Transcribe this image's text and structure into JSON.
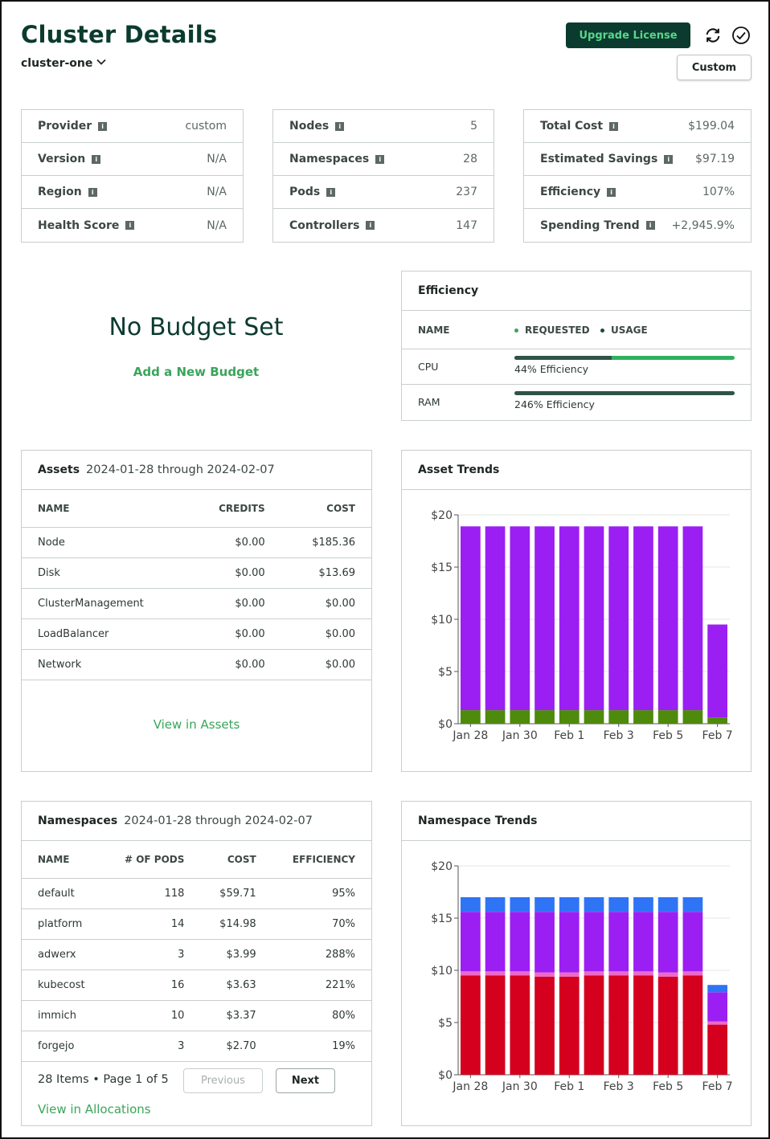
{
  "header": {
    "title": "Cluster Details",
    "cluster_name": "cluster-one",
    "upgrade_label": "Upgrade License",
    "custom_label": "Custom",
    "refresh_icon": "refresh-icon",
    "check_icon": "check-circle-icon"
  },
  "cluster_info": [
    {
      "label": "Provider",
      "value": "custom"
    },
    {
      "label": "Version",
      "value": "N/A"
    },
    {
      "label": "Region",
      "value": "N/A"
    },
    {
      "label": "Health Score",
      "value": "N/A"
    }
  ],
  "resources": [
    {
      "label": "Nodes",
      "value": "5"
    },
    {
      "label": "Namespaces",
      "value": "28"
    },
    {
      "label": "Pods",
      "value": "237"
    },
    {
      "label": "Controllers",
      "value": "147"
    }
  ],
  "costs": [
    {
      "label": "Total Cost",
      "value": "$199.04"
    },
    {
      "label": "Estimated Savings",
      "value": "$97.19"
    },
    {
      "label": "Efficiency",
      "value": "107%"
    },
    {
      "label": "Spending Trend",
      "value": "+2,945.9%"
    }
  ],
  "budget": {
    "title": "No Budget Set",
    "link": "Add a New Budget"
  },
  "efficiency": {
    "title": "Efficiency",
    "col_name": "NAME",
    "legend_requested": "REQUESTED",
    "legend_usage": "USAGE",
    "rows": [
      {
        "name": "CPU",
        "label": "44% Efficiency",
        "usage_fraction": 0.44
      },
      {
        "name": "RAM",
        "label": "246% Efficiency",
        "usage_fraction": 1.0
      }
    ]
  },
  "assets": {
    "title": "Assets",
    "range": "2024-01-28 through 2024-02-07",
    "columns": [
      "NAME",
      "CREDITS",
      "COST"
    ],
    "rows": [
      [
        "Node",
        "$0.00",
        "$185.36"
      ],
      [
        "Disk",
        "$0.00",
        "$13.69"
      ],
      [
        "ClusterManagement",
        "$0.00",
        "$0.00"
      ],
      [
        "LoadBalancer",
        "$0.00",
        "$0.00"
      ],
      [
        "Network",
        "$0.00",
        "$0.00"
      ]
    ],
    "link": "View in Assets"
  },
  "namespaces": {
    "title": "Namespaces",
    "range": "2024-01-28 through 2024-02-07",
    "columns": [
      "NAME",
      "# OF PODS",
      "COST",
      "EFFICIENCY"
    ],
    "rows": [
      [
        "default",
        "118",
        "$59.71",
        "95%"
      ],
      [
        "platform",
        "14",
        "$14.98",
        "70%"
      ],
      [
        "adwerx",
        "3",
        "$3.99",
        "288%"
      ],
      [
        "kubecost",
        "16",
        "$3.63",
        "221%"
      ],
      [
        "immich",
        "10",
        "$3.37",
        "80%"
      ],
      [
        "forgejo",
        "3",
        "$2.70",
        "19%"
      ]
    ],
    "pager_text": "28 Items • Page 1 of 5",
    "prev_label": "Previous",
    "next_label": "Next",
    "link": "View in Allocations"
  },
  "chart_data": [
    {
      "type": "bar",
      "title": "Asset Trends",
      "stacked": true,
      "x": [
        "Jan 28",
        "Jan 29",
        "Jan 30",
        "Jan 31",
        "Feb 1",
        "Feb 2",
        "Feb 3",
        "Feb 4",
        "Feb 5",
        "Feb 6",
        "Feb 7"
      ],
      "x_tick_labels": [
        "Jan 28",
        "Jan 30",
        "Feb 1",
        "Feb 3",
        "Feb 5",
        "Feb 7"
      ],
      "y_tick_labels": [
        "$0",
        "$5",
        "$10",
        "$15",
        "$20"
      ],
      "ylim": [
        0,
        20
      ],
      "grid": true,
      "series": [
        {
          "color": "#4e8a0b",
          "values": [
            1.3,
            1.3,
            1.3,
            1.3,
            1.3,
            1.3,
            1.3,
            1.3,
            1.3,
            1.3,
            0.6
          ]
        },
        {
          "color": "#9b1ff2",
          "values": [
            17.6,
            17.6,
            17.6,
            17.6,
            17.6,
            17.6,
            17.6,
            17.6,
            17.6,
            17.6,
            8.9
          ]
        }
      ]
    },
    {
      "type": "bar",
      "title": "Namespace Trends",
      "stacked": true,
      "x": [
        "Jan 28",
        "Jan 29",
        "Jan 30",
        "Jan 31",
        "Feb 1",
        "Feb 2",
        "Feb 3",
        "Feb 4",
        "Feb 5",
        "Feb 6",
        "Feb 7"
      ],
      "x_tick_labels": [
        "Jan 28",
        "Jan 30",
        "Feb 1",
        "Feb 3",
        "Feb 5",
        "Feb 7"
      ],
      "y_tick_labels": [
        "$0",
        "$5",
        "$10",
        "$15",
        "$20"
      ],
      "ylim": [
        0,
        20
      ],
      "grid": true,
      "series": [
        {
          "color": "#d4001e",
          "values": [
            9.5,
            9.5,
            9.5,
            9.4,
            9.4,
            9.5,
            9.5,
            9.5,
            9.4,
            9.5,
            4.8
          ]
        },
        {
          "color": "#ee68c9",
          "values": [
            0.4,
            0.4,
            0.4,
            0.4,
            0.4,
            0.4,
            0.4,
            0.4,
            0.4,
            0.4,
            0.3
          ]
        },
        {
          "color": "#9b1ff2",
          "values": [
            5.7,
            5.7,
            5.7,
            5.8,
            5.8,
            5.7,
            5.7,
            5.7,
            5.8,
            5.7,
            2.8
          ]
        },
        {
          "color": "#2f74f5",
          "values": [
            1.4,
            1.4,
            1.4,
            1.4,
            1.4,
            1.4,
            1.4,
            1.4,
            1.4,
            1.4,
            0.7
          ]
        }
      ]
    }
  ]
}
